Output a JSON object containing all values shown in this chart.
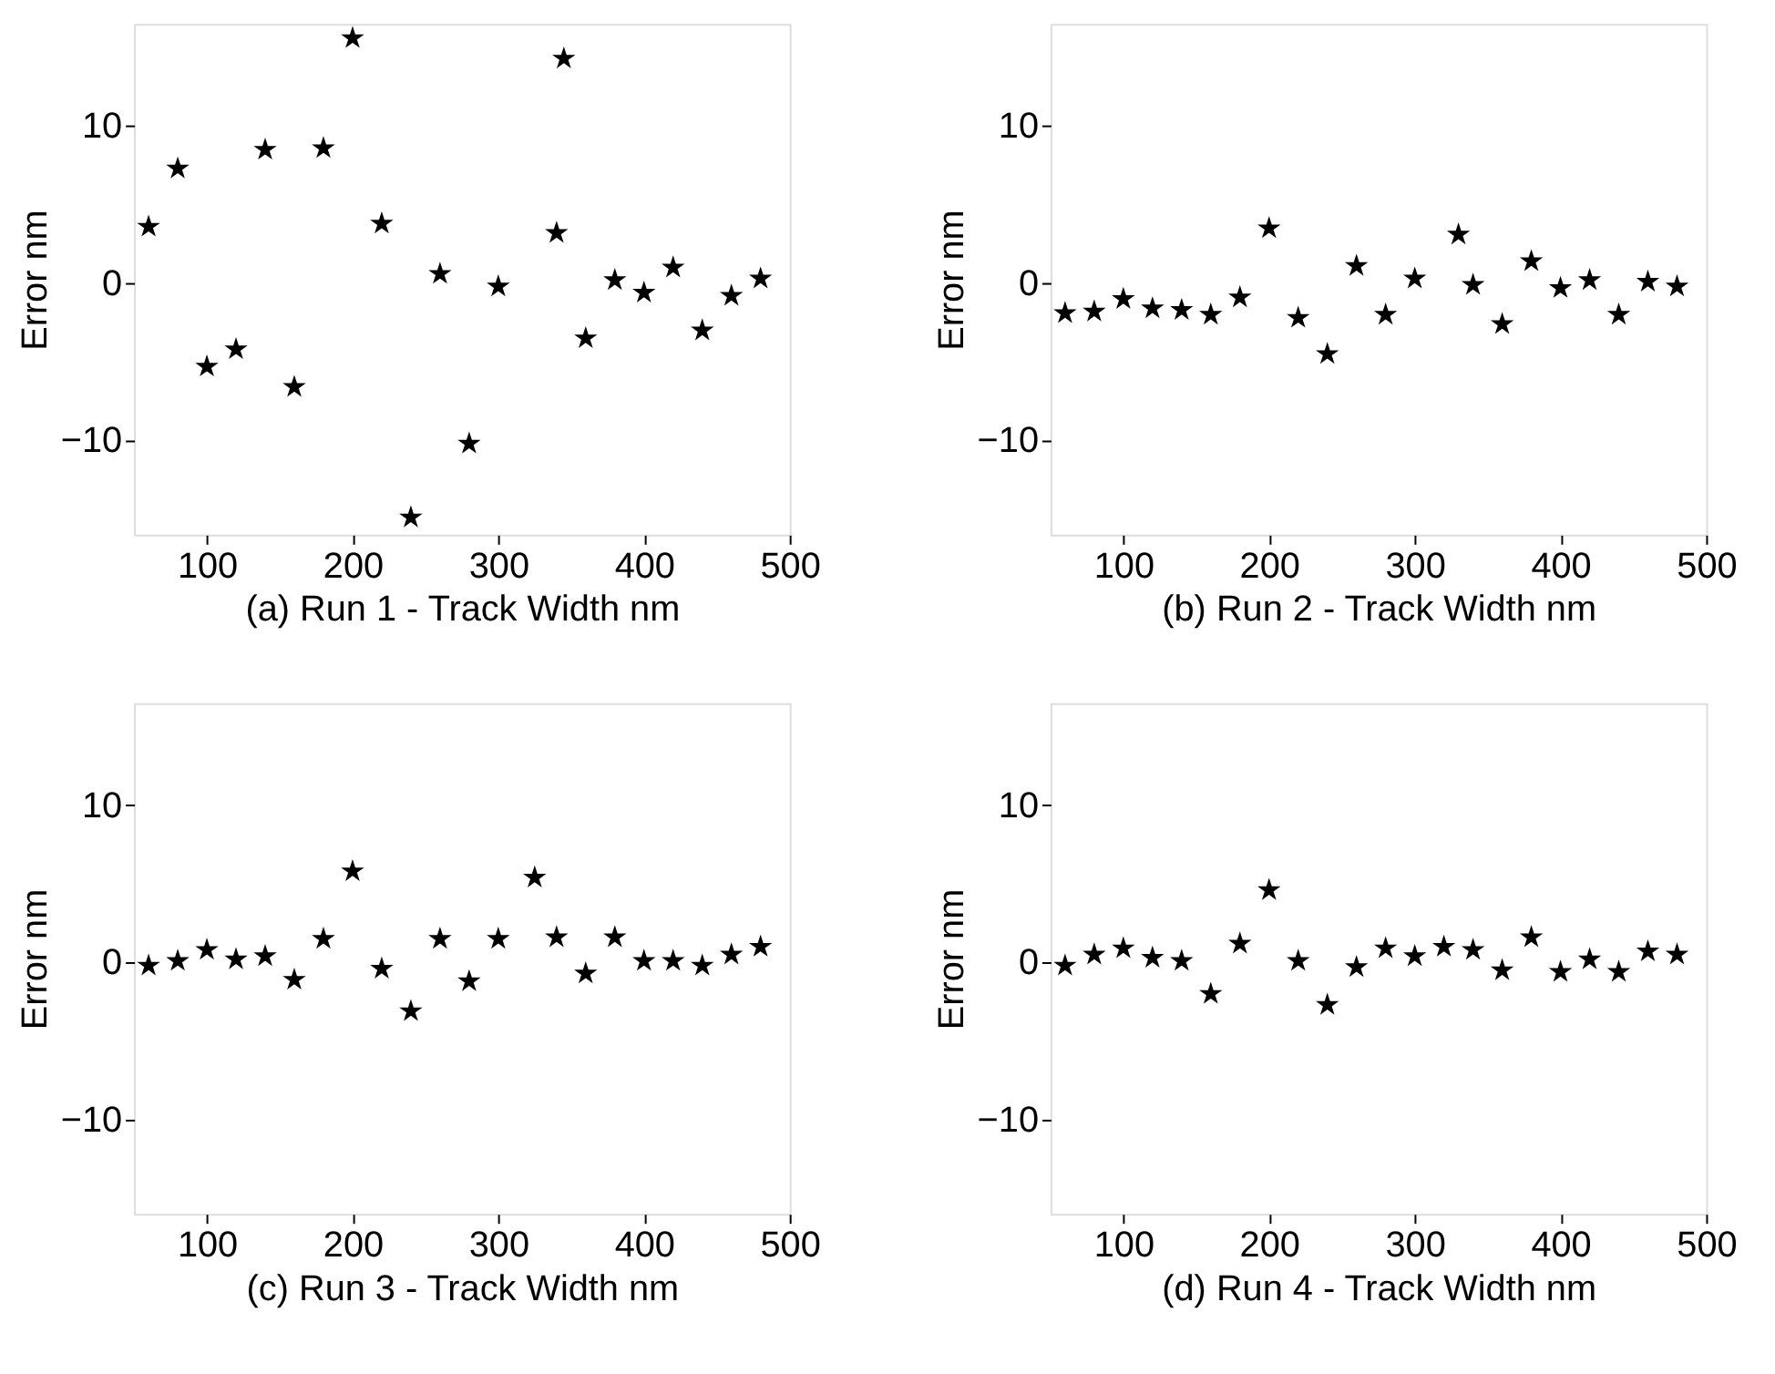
{
  "chart_data": [
    {
      "type": "scatter",
      "xlabel": "(a) Run 1 - Track Width nm",
      "ylabel": "Error nm",
      "marker": "star",
      "color": "#000000",
      "grid": false,
      "xlim": [
        50,
        500
      ],
      "ylim": [
        -16,
        16.5
      ],
      "xticks": [
        100,
        200,
        300,
        400,
        500
      ],
      "yticks": [
        -10,
        0,
        10
      ],
      "x": [
        60,
        80,
        100,
        120,
        140,
        160,
        180,
        200,
        220,
        240,
        260,
        280,
        300,
        340,
        345,
        360,
        380,
        400,
        420,
        440,
        460,
        480
      ],
      "values": [
        3.6,
        7.3,
        -5.3,
        -4.2,
        8.5,
        -6.6,
        8.6,
        15.6,
        3.8,
        -14.9,
        0.6,
        -10.2,
        -0.2,
        3.2,
        14.3,
        -3.5,
        0.2,
        -0.6,
        1.0,
        -3.0,
        -0.8,
        0.3
      ]
    },
    {
      "type": "scatter",
      "xlabel": "(b) Run 2 - Track Width nm",
      "ylabel": "Error nm",
      "marker": "star",
      "color": "#000000",
      "grid": false,
      "xlim": [
        50,
        500
      ],
      "ylim": [
        -16,
        16.5
      ],
      "xticks": [
        100,
        200,
        300,
        400,
        500
      ],
      "yticks": [
        -10,
        0,
        10
      ],
      "x": [
        60,
        80,
        100,
        120,
        140,
        160,
        180,
        200,
        220,
        240,
        260,
        280,
        300,
        330,
        340,
        360,
        380,
        400,
        420,
        440,
        460,
        480
      ],
      "values": [
        -1.9,
        -1.8,
        -1.0,
        -1.6,
        -1.7,
        -2.0,
        -0.9,
        3.5,
        -2.2,
        -4.5,
        1.1,
        -2.0,
        0.3,
        3.1,
        -0.1,
        -2.6,
        1.4,
        -0.3,
        0.2,
        -2.0,
        0.1,
        -0.2
      ]
    },
    {
      "type": "scatter",
      "xlabel": "(c) Run 3 - Track Width nm",
      "ylabel": "Error nm",
      "marker": "star",
      "color": "#000000",
      "grid": false,
      "xlim": [
        50,
        500
      ],
      "ylim": [
        -16,
        16.5
      ],
      "xticks": [
        100,
        200,
        300,
        400,
        500
      ],
      "yticks": [
        -10,
        0,
        10
      ],
      "x": [
        60,
        80,
        100,
        120,
        140,
        160,
        180,
        200,
        220,
        240,
        260,
        280,
        300,
        325,
        340,
        360,
        380,
        400,
        420,
        440,
        460,
        480
      ],
      "values": [
        -0.2,
        0.1,
        0.8,
        0.2,
        0.4,
        -1.1,
        1.5,
        5.8,
        -0.4,
        -3.1,
        1.5,
        -1.2,
        1.5,
        5.4,
        1.6,
        -0.7,
        1.6,
        0.1,
        0.1,
        -0.2,
        0.5,
        1.0
      ]
    },
    {
      "type": "scatter",
      "xlabel": "(d) Run 4 - Track Width nm",
      "ylabel": "Error nm",
      "marker": "star",
      "color": "#000000",
      "grid": false,
      "xlim": [
        50,
        500
      ],
      "ylim": [
        -16,
        16.5
      ],
      "xticks": [
        100,
        200,
        300,
        400,
        500
      ],
      "yticks": [
        -10,
        0,
        10
      ],
      "x": [
        60,
        80,
        100,
        120,
        140,
        160,
        180,
        200,
        220,
        240,
        260,
        280,
        300,
        320,
        340,
        360,
        380,
        400,
        420,
        440,
        460,
        480
      ],
      "values": [
        -0.2,
        0.5,
        0.9,
        0.3,
        0.1,
        -2.0,
        1.2,
        4.6,
        0.1,
        -2.7,
        -0.3,
        0.9,
        0.4,
        1.0,
        0.8,
        -0.5,
        1.6,
        -0.6,
        0.2,
        -0.6,
        0.7,
        0.5
      ]
    }
  ]
}
